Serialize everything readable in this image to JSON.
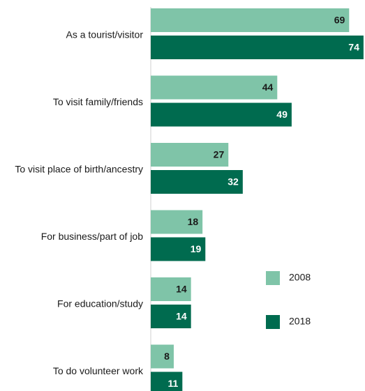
{
  "chart_data": {
    "type": "bar",
    "orientation": "horizontal",
    "categories": [
      "As a tourist/visitor",
      "To visit family/friends",
      "To visit place of birth/ancestry",
      "For business/part of job",
      "For education/study",
      "To do volunteer work"
    ],
    "series": [
      {
        "name": "2008",
        "values": [
          69,
          44,
          27,
          18,
          14,
          8
        ],
        "color": "#7fc4a8",
        "label_color": "#1a1a1a"
      },
      {
        "name": "2018",
        "values": [
          74,
          49,
          32,
          19,
          14,
          11
        ],
        "color": "#006b4f",
        "label_color": "#ffffff"
      }
    ],
    "legend": {
      "placement": "right"
    },
    "grid": false,
    "xlim": [
      0,
      74
    ]
  }
}
